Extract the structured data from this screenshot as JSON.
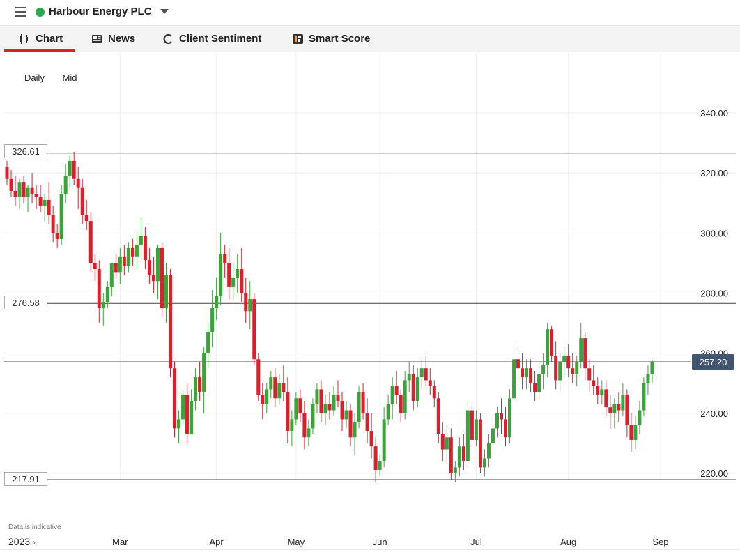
{
  "header": {
    "instrument": "Harbour Energy PLC",
    "status_color": "#2fa84f"
  },
  "tabs": [
    {
      "label": "Chart",
      "icon": "candlestick-icon",
      "active": true
    },
    {
      "label": "News",
      "icon": "newspaper-icon",
      "active": false
    },
    {
      "label": "Client Sentiment",
      "icon": "sentiment-dial-icon",
      "active": false
    },
    {
      "label": "Smart Score",
      "icon": "smart-score-icon",
      "active": false
    }
  ],
  "controls": {
    "interval": "Daily",
    "price_type": "Mid"
  },
  "disclaimer": "Data is indicative",
  "year_label": "2023",
  "year_chevron": "›",
  "current_price_label": "257.20",
  "levels": [
    {
      "label": "326.61",
      "value": 326.61
    },
    {
      "label": "276.58",
      "value": 276.58
    },
    {
      "label": "217.91",
      "value": 217.91
    }
  ],
  "colors": {
    "up": "#3aa33a",
    "down": "#d9202c",
    "accent": "#d9202c",
    "price_tag": "#3f5570"
  },
  "chart_data": {
    "type": "candlestick",
    "ylim": [
      205,
      350
    ],
    "y_ticks": [
      "220.00",
      "240.00",
      "260.00",
      "280.00",
      "300.00",
      "320.00",
      "340.00"
    ],
    "x_ticks": [
      "Mar",
      "Apr",
      "May",
      "Jun",
      "Jul",
      "Aug",
      "Sep"
    ],
    "x_tick_index": [
      27,
      50,
      69,
      89,
      112,
      134,
      156
    ],
    "x_count": 159,
    "current_price": 257.2,
    "series": [
      {
        "values": [
          [
            322,
            324,
            316,
            318
          ],
          [
            318,
            321,
            312,
            314
          ],
          [
            314,
            319,
            309,
            312
          ],
          [
            312,
            318,
            308,
            317
          ],
          [
            317,
            319,
            310,
            312
          ],
          [
            312,
            316,
            307,
            315
          ],
          [
            315,
            320,
            310,
            313
          ],
          [
            313,
            316,
            308,
            312
          ],
          [
            312,
            316,
            307,
            309
          ],
          [
            309,
            313,
            304,
            311
          ],
          [
            311,
            317,
            303,
            306
          ],
          [
            306,
            309,
            297,
            300
          ],
          [
            300,
            303,
            295,
            298
          ],
          [
            298,
            316,
            296,
            313
          ],
          [
            313,
            323,
            310,
            319
          ],
          [
            319,
            326,
            315,
            324
          ],
          [
            324,
            327,
            316,
            318
          ],
          [
            318,
            322,
            308,
            315
          ],
          [
            315,
            318,
            303,
            306
          ],
          [
            306,
            311,
            301,
            304
          ],
          [
            304,
            307,
            287,
            290
          ],
          [
            290,
            293,
            284,
            288
          ],
          [
            288,
            291,
            270,
            275
          ],
          [
            275,
            280,
            269,
            277
          ],
          [
            277,
            284,
            275,
            282
          ],
          [
            282,
            290,
            279,
            290
          ],
          [
            290,
            293,
            285,
            287
          ],
          [
            287,
            295,
            283,
            292
          ],
          [
            292,
            296,
            286,
            289
          ],
          [
            289,
            297,
            287,
            295
          ],
          [
            295,
            298,
            289,
            292
          ],
          [
            292,
            300,
            288,
            296
          ],
          [
            296,
            305,
            292,
            299
          ],
          [
            299,
            302,
            288,
            291
          ],
          [
            291,
            295,
            283,
            286
          ],
          [
            286,
            292,
            280,
            284
          ],
          [
            284,
            296,
            278,
            295
          ],
          [
            295,
            297,
            272,
            275
          ],
          [
            275,
            290,
            270,
            286
          ],
          [
            286,
            288,
            252,
            255
          ],
          [
            255,
            257,
            232,
            235
          ],
          [
            235,
            241,
            230,
            238
          ],
          [
            238,
            248,
            236,
            246
          ],
          [
            246,
            250,
            230,
            233
          ],
          [
            233,
            248,
            234,
            244
          ],
          [
            244,
            255,
            241,
            252
          ],
          [
            252,
            257,
            244,
            247
          ],
          [
            247,
            262,
            240,
            260
          ],
          [
            260,
            270,
            255,
            267
          ],
          [
            267,
            281,
            262,
            275
          ],
          [
            275,
            285,
            271,
            279
          ],
          [
            279,
            300,
            276,
            293
          ],
          [
            293,
            296,
            285,
            290
          ],
          [
            290,
            295,
            278,
            282
          ],
          [
            282,
            290,
            278,
            285
          ],
          [
            285,
            293,
            280,
            288
          ],
          [
            288,
            295,
            277,
            280
          ],
          [
            280,
            285,
            270,
            274
          ],
          [
            274,
            284,
            268,
            278
          ],
          [
            278,
            280,
            256,
            258
          ],
          [
            258,
            260,
            244,
            246
          ],
          [
            246,
            250,
            238,
            243
          ],
          [
            243,
            250,
            240,
            248
          ],
          [
            248,
            254,
            245,
            252
          ],
          [
            252,
            255,
            242,
            245
          ],
          [
            245,
            253,
            243,
            250
          ],
          [
            250,
            256,
            244,
            247
          ],
          [
            247,
            252,
            230,
            234
          ],
          [
            234,
            241,
            229,
            238
          ],
          [
            238,
            247,
            236,
            245
          ],
          [
            245,
            248,
            237,
            240
          ],
          [
            240,
            244,
            228,
            232
          ],
          [
            232,
            238,
            229,
            235
          ],
          [
            235,
            245,
            233,
            243
          ],
          [
            243,
            250,
            240,
            248
          ],
          [
            248,
            251,
            237,
            240
          ],
          [
            240,
            246,
            236,
            243
          ],
          [
            243,
            247,
            238,
            241
          ],
          [
            241,
            249,
            239,
            246
          ],
          [
            246,
            251,
            242,
            244
          ],
          [
            244,
            247,
            234,
            238
          ],
          [
            238,
            244,
            235,
            241
          ],
          [
            241,
            243,
            229,
            232
          ],
          [
            232,
            240,
            226,
            237
          ],
          [
            237,
            249,
            235,
            247
          ],
          [
            247,
            250,
            238,
            240
          ],
          [
            240,
            245,
            230,
            234
          ],
          [
            234,
            240,
            225,
            229
          ],
          [
            229,
            232,
            217,
            221
          ],
          [
            221,
            226,
            219,
            224
          ],
          [
            224,
            242,
            222,
            238
          ],
          [
            238,
            246,
            236,
            243
          ],
          [
            243,
            252,
            238,
            249
          ],
          [
            249,
            254,
            243,
            246
          ],
          [
            246,
            248,
            237,
            240
          ],
          [
            240,
            254,
            238,
            251
          ],
          [
            251,
            257,
            247,
            253
          ],
          [
            253,
            256,
            241,
            244
          ],
          [
            244,
            255,
            242,
            252
          ],
          [
            252,
            258,
            248,
            255
          ],
          [
            255,
            259,
            249,
            251
          ],
          [
            251,
            255,
            246,
            249
          ],
          [
            249,
            251,
            242,
            245
          ],
          [
            245,
            247,
            230,
            233
          ],
          [
            233,
            237,
            224,
            228
          ],
          [
            228,
            236,
            223,
            232
          ],
          [
            232,
            235,
            218,
            220
          ],
          [
            220,
            224,
            217,
            222
          ],
          [
            222,
            232,
            219,
            229
          ],
          [
            229,
            233,
            221,
            224
          ],
          [
            224,
            244,
            222,
            241
          ],
          [
            241,
            243,
            228,
            231
          ],
          [
            231,
            241,
            229,
            238
          ],
          [
            238,
            240,
            220,
            222
          ],
          [
            222,
            228,
            219,
            225
          ],
          [
            225,
            233,
            222,
            230
          ],
          [
            230,
            238,
            227,
            235
          ],
          [
            235,
            242,
            232,
            240
          ],
          [
            240,
            245,
            233,
            238
          ],
          [
            238,
            242,
            229,
            232
          ],
          [
            232,
            248,
            230,
            245
          ],
          [
            245,
            264,
            243,
            258
          ],
          [
            258,
            262,
            250,
            255
          ],
          [
            255,
            260,
            248,
            252
          ],
          [
            252,
            258,
            248,
            255
          ],
          [
            255,
            258,
            247,
            250
          ],
          [
            250,
            254,
            244,
            247
          ],
          [
            247,
            256,
            245,
            253
          ],
          [
            253,
            260,
            248,
            256
          ],
          [
            256,
            270,
            252,
            268
          ],
          [
            268,
            269,
            257,
            259
          ],
          [
            259,
            264,
            248,
            251
          ],
          [
            251,
            260,
            247,
            257
          ],
          [
            257,
            262,
            252,
            259
          ],
          [
            259,
            263,
            252,
            255
          ],
          [
            255,
            260,
            250,
            253
          ],
          [
            253,
            259,
            249,
            257
          ],
          [
            257,
            270,
            255,
            265
          ],
          [
            265,
            267,
            251,
            255
          ],
          [
            255,
            258,
            247,
            251
          ],
          [
            251,
            256,
            246,
            249
          ],
          [
            249,
            252,
            243,
            246
          ],
          [
            246,
            251,
            243,
            248
          ],
          [
            248,
            251,
            239,
            242
          ],
          [
            242,
            246,
            235,
            240
          ],
          [
            240,
            245,
            235,
            243
          ],
          [
            243,
            247,
            237,
            241
          ],
          [
            241,
            250,
            239,
            246
          ],
          [
            246,
            248,
            232,
            236
          ],
          [
            236,
            240,
            227,
            231
          ],
          [
            231,
            239,
            228,
            236
          ],
          [
            236,
            244,
            233,
            241
          ],
          [
            241,
            252,
            239,
            250
          ],
          [
            250,
            256,
            246,
            253
          ],
          [
            253,
            258,
            250,
            257
          ]
        ]
      }
    ]
  }
}
